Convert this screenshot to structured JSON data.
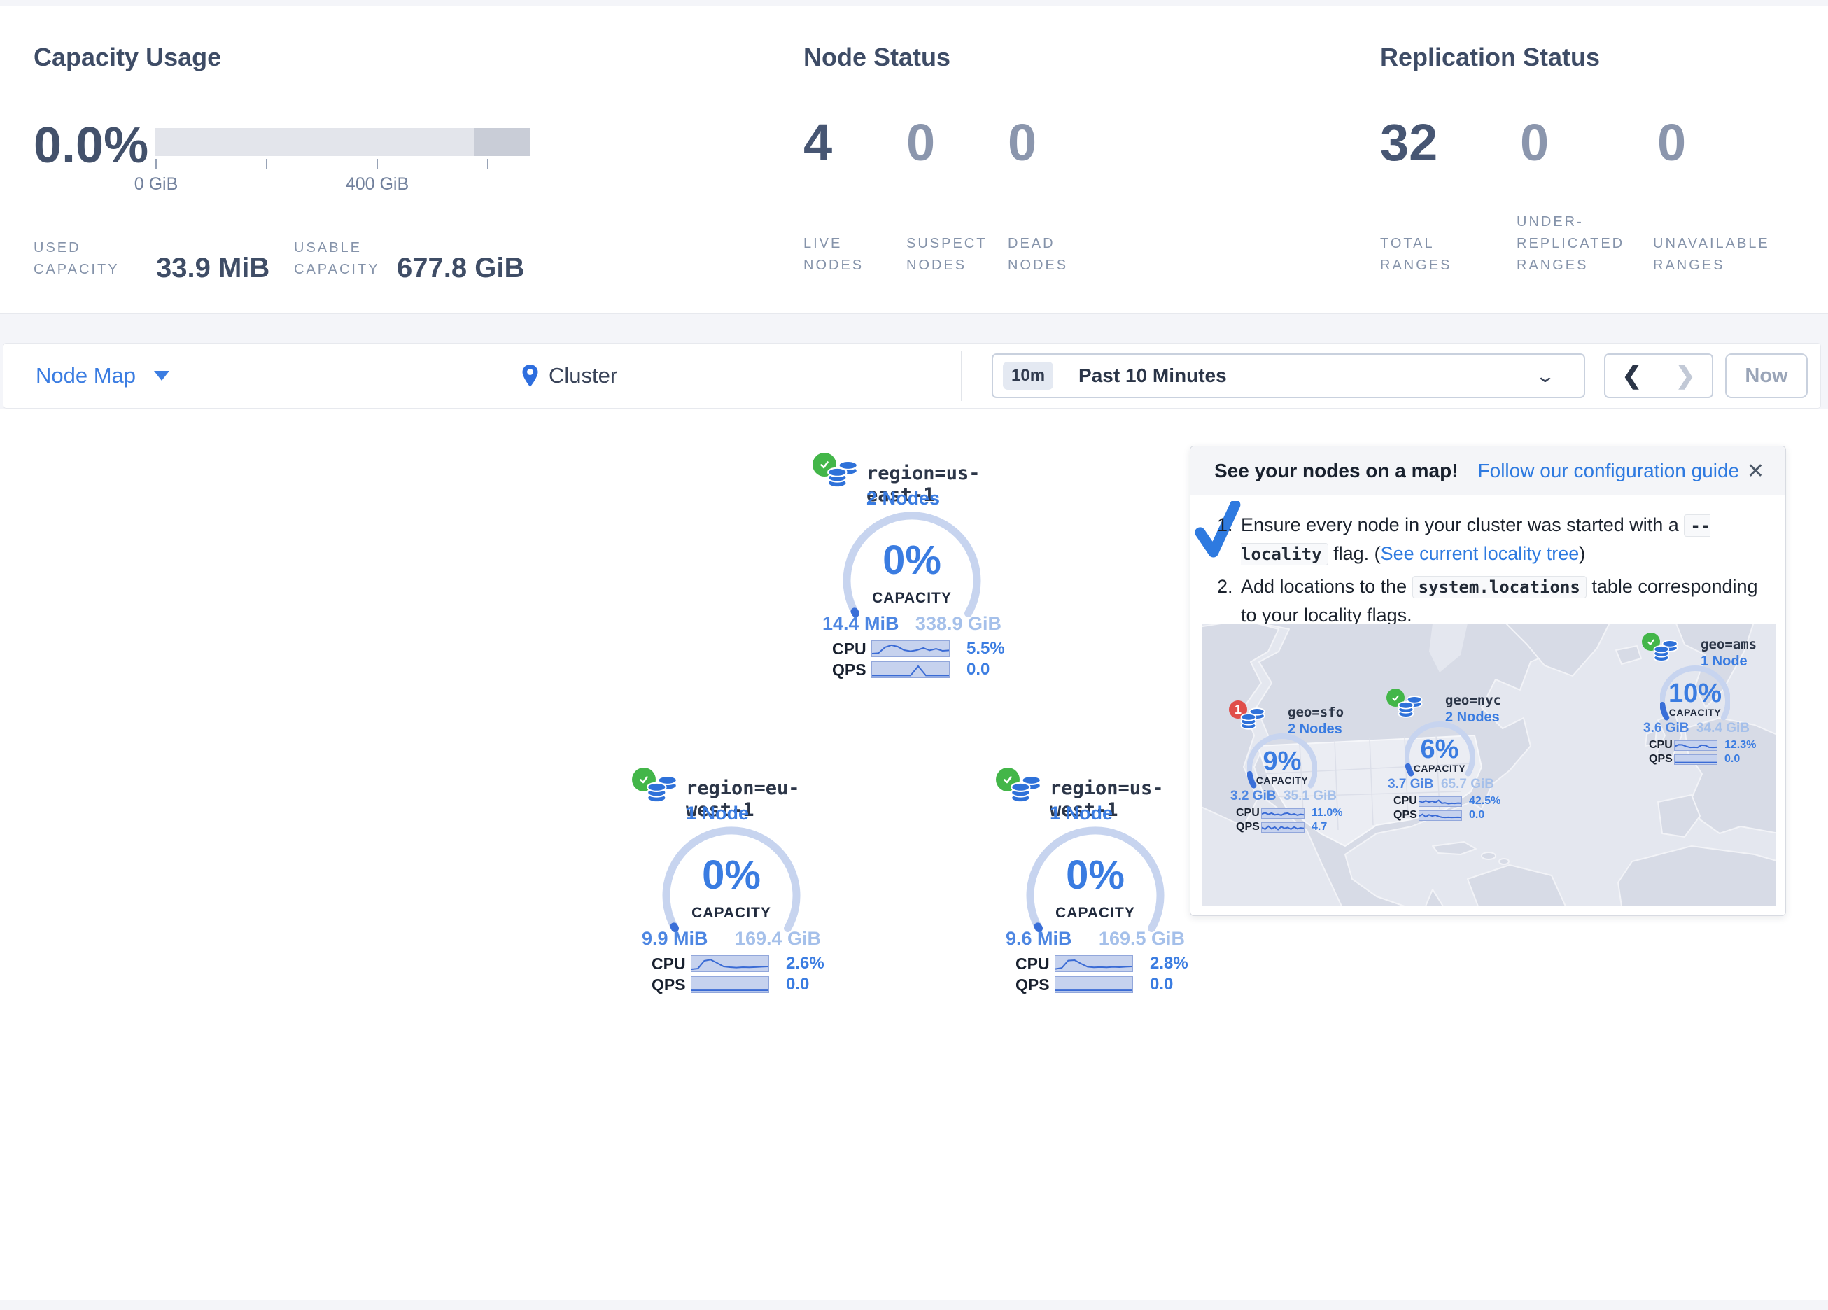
{
  "stats": {
    "capacity": {
      "title": "Capacity Usage",
      "percent": "0.0%",
      "tick_labels": [
        "0 GiB",
        "400 GiB"
      ],
      "used_label": "USED CAPACITY",
      "used_value": "33.9 MiB",
      "usable_label": "USABLE CAPACITY",
      "usable_value": "677.8 GiB"
    },
    "node_status": {
      "title": "Node Status",
      "items": [
        {
          "value": "4",
          "label": "LIVE NODES"
        },
        {
          "value": "0",
          "label": "SUSPECT NODES"
        },
        {
          "value": "0",
          "label": "DEAD NODES"
        }
      ]
    },
    "replication": {
      "title": "Replication Status",
      "items": [
        {
          "value": "32",
          "label": "TOTAL RANGES"
        },
        {
          "value": "0",
          "label": "UNDER-REPLICATED RANGES"
        },
        {
          "value": "0",
          "label": "UNAVAILABLE RANGES"
        }
      ]
    }
  },
  "toolbar": {
    "view_selector": "Node Map",
    "breadcrumb": "Cluster",
    "time_badge": "10m",
    "time_range": "Past 10 Minutes",
    "prev": "❮",
    "next": "❯",
    "now_label": "Now"
  },
  "labels": {
    "capacity": "CAPACITY",
    "cpu": "CPU",
    "qps": "QPS"
  },
  "chart_data": {
    "type": "bar",
    "title": "Capacity Usage",
    "percent_used": 0.0,
    "used": "33.9 MiB",
    "usable": "677.8 GiB",
    "axis_ticks_gib": [
      0,
      200,
      400,
      600
    ],
    "bar_total_gib": 678
  },
  "regions": [
    {
      "label": "region=us-east-1",
      "nodes": "2 Nodes",
      "status": "ok",
      "percent": "0%",
      "used": "14.4 MiB",
      "total": "338.9 GiB",
      "cpu": "5.5%",
      "qps": "0.0",
      "gauge_pct": 0.8,
      "cpu_spark": [
        85,
        82,
        40,
        25,
        35,
        60,
        68,
        60,
        45,
        62,
        50,
        65,
        62
      ],
      "qps_spark": [
        92,
        92,
        92,
        92,
        92,
        92,
        25,
        92,
        92,
        92,
        92
      ]
    },
    {
      "label": "region=eu-west-1",
      "nodes": "1 Node",
      "status": "ok",
      "percent": "0%",
      "used": "9.9 MiB",
      "total": "169.4 GiB",
      "cpu": "2.6%",
      "qps": "0.0",
      "gauge_pct": 0.8,
      "cpu_spark": [
        90,
        85,
        30,
        22,
        45,
        70,
        75,
        78,
        75,
        76,
        74,
        72,
        70
      ],
      "qps_spark": [
        90,
        90,
        90,
        90,
        90,
        90,
        90,
        90,
        90,
        90
      ]
    },
    {
      "label": "region=us-west-1",
      "nodes": "1 Node",
      "status": "ok",
      "percent": "0%",
      "used": "9.6 MiB",
      "total": "169.5 GiB",
      "cpu": "2.8%",
      "qps": "0.0",
      "gauge_pct": 0.8,
      "cpu_spark": [
        88,
        80,
        28,
        25,
        50,
        72,
        76,
        74,
        76,
        73,
        75,
        72,
        70
      ],
      "qps_spark": [
        90,
        90,
        90,
        90,
        90,
        90,
        90,
        90,
        90,
        90
      ]
    }
  ],
  "popup": {
    "title": "See your nodes on a map!",
    "link": "Follow our configuration guide",
    "close": "✕",
    "item1_num": "1.",
    "item1_pre": "Ensure every node in your cluster was started with a ",
    "item1_code_a": "--",
    "item1_code_b": "locality",
    "item1_mid": " flag. (",
    "item1_link": "See current locality tree",
    "item1_post": ")",
    "item2_num": "2.",
    "item2_pre": "Add locations to the ",
    "item2_code": "system.locations",
    "item2_post": " table corresponding to your locality flags."
  },
  "geo_nodes": [
    {
      "label": "geo=sfo",
      "nodes": "2 Nodes",
      "status": "error",
      "badge": "1",
      "percent": "9%",
      "used": "3.2 GiB",
      "total": "35.1 GiB",
      "cpu": "11.0%",
      "qps": "4.7",
      "gauge_pct": 9,
      "cpu_spark": [
        55,
        40,
        60,
        45,
        65,
        60,
        70,
        50,
        45,
        65,
        55,
        70,
        60,
        65
      ],
      "qps_spark": [
        50,
        70,
        35,
        65,
        45,
        75,
        40,
        60,
        50,
        70,
        45,
        65,
        55,
        60
      ]
    },
    {
      "label": "geo=nyc",
      "nodes": "2 Nodes",
      "status": "ok",
      "percent": "6%",
      "used": "3.7 GiB",
      "total": "65.7 GiB",
      "cpu": "42.5%",
      "qps": "0.0",
      "gauge_pct": 6,
      "cpu_spark": [
        45,
        60,
        40,
        55,
        45,
        60,
        35,
        70,
        65,
        75,
        70,
        72,
        68,
        70
      ],
      "qps_spark": [
        55,
        35,
        65,
        40,
        55,
        45,
        60,
        70,
        72,
        70,
        72,
        71,
        70,
        72
      ]
    },
    {
      "label": "geo=ams",
      "nodes": "1 Node",
      "status": "ok",
      "percent": "10%",
      "used": "3.6 GiB",
      "total": "34.4 GiB",
      "cpu": "12.3%",
      "qps": "0.0",
      "gauge_pct": 10,
      "cpu_spark": [
        60,
        40,
        42,
        60,
        72,
        70,
        72,
        45,
        48,
        70,
        72,
        70
      ],
      "qps_spark": [
        85,
        85,
        85,
        85,
        85,
        85,
        85,
        85
      ]
    }
  ]
}
